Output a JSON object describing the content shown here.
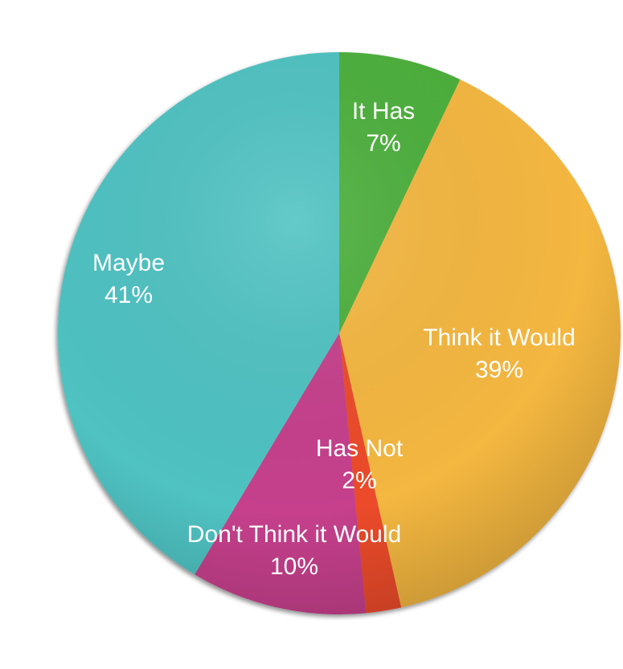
{
  "chart_data": {
    "type": "pie",
    "start_angle_deg": 0,
    "direction": "clockwise",
    "slices": [
      {
        "label": "It Has",
        "value": 7,
        "value_label": "7%",
        "color": "#4caf3a"
      },
      {
        "label": "Think it Would",
        "value": 39,
        "value_label": "39%",
        "color": "#f4b740"
      },
      {
        "label": "Has Not",
        "value": 2,
        "value_label": "2%",
        "color": "#ec4b2c"
      },
      {
        "label": "Don't Think it Would",
        "value": 10,
        "value_label": "10%",
        "color": "#c63f8c"
      },
      {
        "label": "Maybe",
        "value": 41,
        "value_label": "41%",
        "color": "#4fc2c2"
      }
    ]
  }
}
